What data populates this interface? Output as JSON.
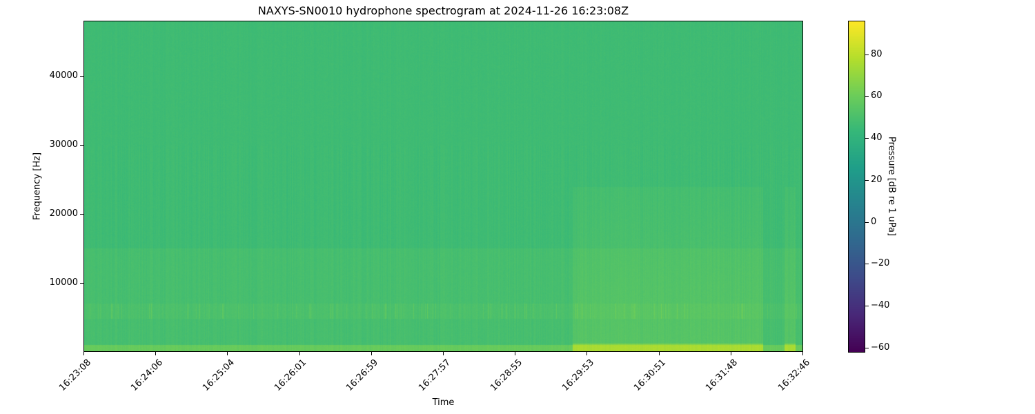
{
  "chart_data": {
    "type": "heatmap",
    "title": "NAXYS-SN0010 hydrophone spectrogram at 2024-11-26 16:23:08Z",
    "xlabel": "Time",
    "ylabel": "Frequency [Hz]",
    "x_tick_labels": [
      "16:23:08",
      "16:24:06",
      "16:25:04",
      "16:26:01",
      "16:26:59",
      "16:27:57",
      "16:28:55",
      "16:29:53",
      "16:30:51",
      "16:31:48",
      "16:32:46"
    ],
    "xlim": [
      "16:23:08",
      "16:32:46"
    ],
    "y_ticks": [
      10000,
      20000,
      30000,
      40000
    ],
    "ylim": [
      0,
      48000
    ],
    "colorbar": {
      "label": "Pressure [dB re 1 uPa]",
      "colormap": "viridis",
      "ticks": [
        -60,
        -40,
        -20,
        0,
        20,
        40,
        60,
        80
      ],
      "range": [
        -62,
        96
      ]
    },
    "grid": false
  }
}
